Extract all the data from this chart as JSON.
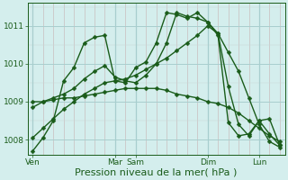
{
  "bg_color": "#d4eeed",
  "grid_major_color": "#a8cece",
  "grid_minor_color": "#c4a8a8",
  "line_color": "#1a5c1a",
  "marker": "D",
  "markersize": 2.5,
  "linewidth": 1.0,
  "xlabel": "Pression niveau de la mer( hPa )",
  "xlabel_fontsize": 8,
  "tick_color": "#1a5c1a",
  "tick_fontsize": 6.5,
  "ylim": [
    1007.6,
    1011.6
  ],
  "ytick_positions": [
    1008,
    1009,
    1010,
    1011
  ],
  "n_points": 25,
  "day_tick_positions": [
    0,
    8,
    10,
    17,
    22
  ],
  "day_labels": [
    "Ven",
    "Mar",
    "Sam",
    "Dim",
    "Lun"
  ],
  "series": [
    [
      1007.7,
      1008.05,
      1008.5,
      1009.55,
      1009.9,
      1010.55,
      1010.7,
      1010.75,
      1009.55,
      1009.5,
      1009.9,
      1010.05,
      1010.55,
      1011.35,
      1011.3,
      1011.2,
      1011.35,
      1011.1,
      1010.8,
      1009.4,
      1008.4,
      1008.1,
      1008.5,
      1008.15,
      1007.85
    ],
    [
      1008.05,
      1008.3,
      1008.55,
      1008.8,
      1009.0,
      1009.2,
      1009.35,
      1009.5,
      1009.55,
      1009.6,
      1009.7,
      1009.85,
      1010.0,
      1010.15,
      1010.35,
      1010.55,
      1010.75,
      1011.0,
      1010.8,
      1010.3,
      1009.8,
      1009.1,
      1008.4,
      1007.95,
      1007.8
    ],
    [
      1009.0,
      1009.0,
      1009.05,
      1009.1,
      1009.1,
      1009.15,
      1009.2,
      1009.25,
      1009.3,
      1009.35,
      1009.35,
      1009.35,
      1009.35,
      1009.3,
      1009.2,
      1009.15,
      1009.1,
      1009.0,
      1008.95,
      1008.85,
      1008.7,
      1008.5,
      1008.3,
      1008.1,
      1007.95
    ],
    [
      1008.85,
      1009.0,
      1009.1,
      1009.2,
      1009.35,
      1009.6,
      1009.8,
      1009.95,
      1009.65,
      1009.55,
      1009.5,
      1009.7,
      1010.0,
      1010.55,
      1011.35,
      1011.25,
      1011.2,
      1011.1,
      1010.75,
      1008.45,
      1008.1,
      1008.15,
      1008.5,
      1008.55,
      1007.85
    ]
  ]
}
